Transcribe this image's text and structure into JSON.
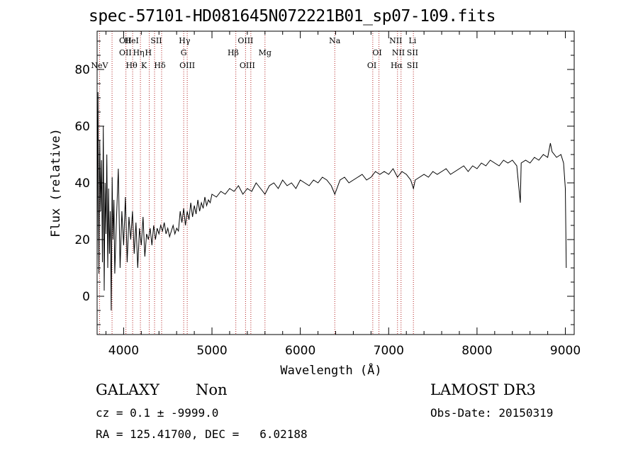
{
  "chart_data": {
    "type": "line",
    "title": "spec-57101-HD081645N072221B01_sp07-109.fits",
    "xlabel": "Wavelength (Å)",
    "ylabel": "Flux (relative)",
    "xlim": [
      3700,
      9100
    ],
    "ylim": [
      -13.5,
      93.5
    ],
    "xticks": [
      "4000",
      "5000",
      "6000",
      "7000",
      "8000",
      "9000"
    ],
    "yticks": [
      "0",
      "20",
      "40",
      "60",
      "80"
    ],
    "xtick_values": [
      4000,
      5000,
      6000,
      7000,
      8000,
      9000
    ],
    "ytick_values": [
      0,
      20,
      40,
      60,
      80
    ],
    "line_color": "#000000",
    "marker_color": "#b22222",
    "series": [
      {
        "x": [
          3700,
          3710,
          3720,
          3730,
          3740,
          3750,
          3760,
          3770,
          3780,
          3790,
          3800,
          3810,
          3820,
          3830,
          3840,
          3850,
          3860,
          3870,
          3880,
          3890,
          3900,
          3920,
          3940,
          3960,
          3980,
          4000,
          4020,
          4040,
          4060,
          4080,
          4100,
          4120,
          4140,
          4160,
          4180,
          4200,
          4220,
          4240,
          4260,
          4280,
          4300,
          4320,
          4340,
          4360,
          4380,
          4400,
          4420,
          4440,
          4460,
          4480,
          4500,
          4520,
          4540,
          4560,
          4580,
          4600,
          4620,
          4640,
          4660,
          4680,
          4700,
          4720,
          4740,
          4760,
          4780,
          4800,
          4820,
          4840,
          4860,
          4880,
          4900,
          4920,
          4940,
          4960,
          4980,
          5000,
          5050,
          5100,
          5150,
          5200,
          5250,
          5300,
          5350,
          5400,
          5450,
          5500,
          5550,
          5600,
          5650,
          5700,
          5750,
          5800,
          5850,
          5900,
          5950,
          6000,
          6050,
          6100,
          6150,
          6200,
          6250,
          6300,
          6350,
          6390,
          6450,
          6500,
          6550,
          6600,
          6650,
          6700,
          6750,
          6800,
          6850,
          6900,
          6950,
          7000,
          7050,
          7100,
          7150,
          7200,
          7250,
          7280,
          7300,
          7350,
          7400,
          7450,
          7500,
          7550,
          7600,
          7650,
          7700,
          7750,
          7800,
          7850,
          7900,
          7950,
          8000,
          8050,
          8100,
          8150,
          8200,
          8250,
          8300,
          8350,
          8400,
          8450,
          8490,
          8500,
          8550,
          8600,
          8650,
          8700,
          8750,
          8800,
          8830,
          8850,
          8900,
          8950,
          8980,
          9000,
          9010
        ],
        "y": [
          10,
          72,
          8,
          55,
          30,
          48,
          12,
          60,
          2,
          40,
          22,
          50,
          10,
          38,
          15,
          30,
          -5,
          42,
          20,
          34,
          8,
          28,
          45,
          10,
          30,
          18,
          35,
          12,
          28,
          20,
          30,
          15,
          26,
          10,
          24,
          18,
          28,
          14,
          22,
          20,
          24,
          18,
          25,
          20,
          24,
          22,
          25,
          23,
          26,
          22,
          24,
          21,
          23,
          25,
          22,
          24,
          23,
          30,
          26,
          31,
          25,
          30,
          27,
          33,
          28,
          32,
          29,
          34,
          30,
          33,
          31,
          35,
          32,
          34,
          33,
          36,
          35,
          37,
          36,
          38,
          37,
          39,
          36,
          38,
          37,
          40,
          38,
          36,
          39,
          40,
          38,
          41,
          39,
          40,
          38,
          41,
          40,
          39,
          41,
          40,
          42,
          41,
          39,
          36,
          41,
          42,
          40,
          41,
          42,
          43,
          41,
          42,
          44,
          43,
          44,
          43,
          45,
          42,
          44,
          43,
          41,
          38,
          41,
          42,
          43,
          42,
          44,
          43,
          44,
          45,
          43,
          44,
          45,
          46,
          44,
          46,
          45,
          47,
          46,
          48,
          47,
          46,
          48,
          47,
          48,
          46,
          33,
          47,
          48,
          47,
          49,
          48,
          50,
          49,
          54,
          51,
          49,
          50,
          47,
          38,
          10
        ]
      }
    ],
    "lines": [
      {
        "x": 3727,
        "labels": [
          "NeV"
        ],
        "rows": [
          3
        ],
        "xs": [
          3727
        ]
      },
      {
        "x": 3869,
        "labels": [],
        "rows": [],
        "xs": []
      },
      {
        "x": 4026,
        "labels": [
          "OII",
          "OII"
        ],
        "rows": [
          1,
          2
        ],
        "xs": [
          4020,
          4020
        ]
      },
      {
        "x": 4102,
        "labels": [
          "HeI",
          "Hθ"
        ],
        "rows": [
          1,
          3
        ],
        "xs": [
          4090,
          4090
        ]
      },
      {
        "x": 4190,
        "labels": [
          "Hη",
          "K"
        ],
        "rows": [
          2,
          3
        ],
        "xs": [
          4170,
          4230
        ]
      },
      {
        "x": 4290,
        "labels": [
          "H"
        ],
        "rows": [
          2
        ],
        "xs": [
          4280
        ]
      },
      {
        "x": 4350,
        "labels": [
          "SII"
        ],
        "rows": [
          1
        ],
        "xs": [
          4370
        ]
      },
      {
        "x": 4430,
        "labels": [
          "Hδ"
        ],
        "rows": [
          3
        ],
        "xs": [
          4410
        ]
      },
      {
        "x": 4680,
        "labels": [
          "Hγ",
          "G"
        ],
        "rows": [
          1,
          2
        ],
        "xs": [
          4690,
          4680
        ]
      },
      {
        "x": 4720,
        "labels": [
          "OIII"
        ],
        "rows": [
          3
        ],
        "xs": [
          4720
        ]
      },
      {
        "x": 5270,
        "labels": [
          "Hβ"
        ],
        "rows": [
          2
        ],
        "xs": [
          5240
        ]
      },
      {
        "x": 5380,
        "labels": [
          "OIII"
        ],
        "rows": [
          1
        ],
        "xs": [
          5380
        ]
      },
      {
        "x": 5440,
        "labels": [
          "OIII"
        ],
        "rows": [
          3
        ],
        "xs": [
          5400
        ]
      },
      {
        "x": 5600,
        "labels": [
          "Mg"
        ],
        "rows": [
          2
        ],
        "xs": [
          5600
        ]
      },
      {
        "x": 6390,
        "labels": [
          "Na"
        ],
        "rows": [
          1
        ],
        "xs": [
          6390
        ]
      },
      {
        "x": 6820,
        "labels": [
          "OI"
        ],
        "rows": [
          3
        ],
        "xs": [
          6810
        ]
      },
      {
        "x": 6890,
        "labels": [
          "OI"
        ],
        "rows": [
          2
        ],
        "xs": [
          6870
        ]
      },
      {
        "x": 7100,
        "labels": [
          "NII",
          "NII",
          "Hα"
        ],
        "rows": [
          1,
          2,
          3
        ],
        "xs": [
          7080,
          7110,
          7090
        ]
      },
      {
        "x": 7140,
        "labels": [],
        "rows": [],
        "xs": []
      },
      {
        "x": 7280,
        "labels": [
          "Li",
          "SII",
          "SII"
        ],
        "rows": [
          1,
          2,
          3
        ],
        "xs": [
          7270,
          7270,
          7270
        ]
      }
    ]
  },
  "info": {
    "object_class": "GALAXY",
    "subclass": "Non",
    "survey": "LAMOST DR3",
    "cz_line": "cz = 0.1 ± -9999.0",
    "obs_date": "Obs-Date: 20150319",
    "coords": "RA = 125.41700, DEC =   6.02188"
  }
}
